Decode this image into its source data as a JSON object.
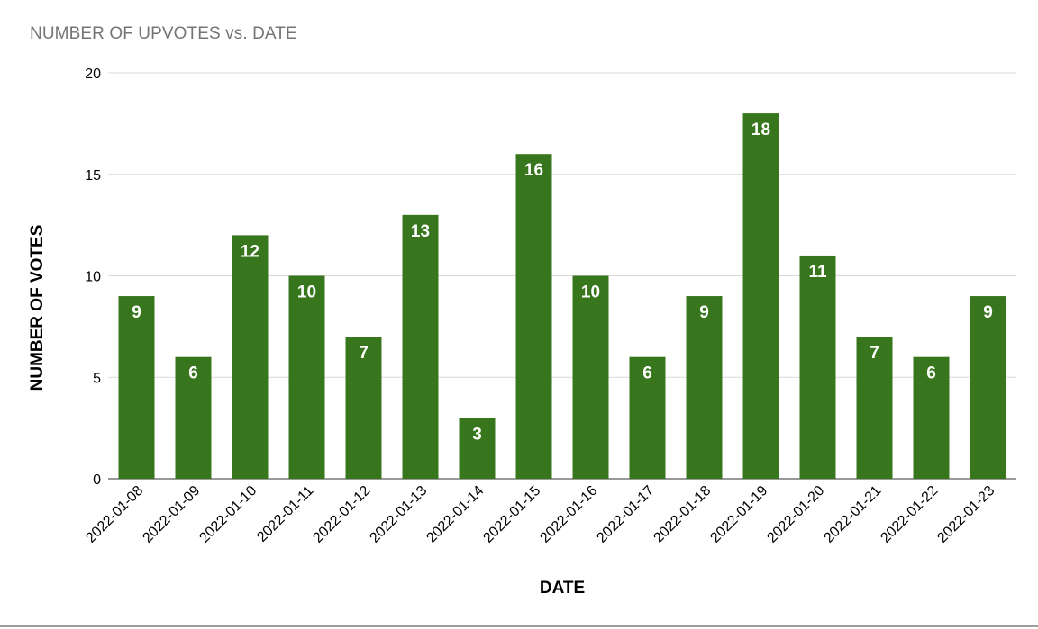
{
  "chart_data": {
    "type": "bar",
    "title": "NUMBER OF UPVOTES vs. DATE",
    "xlabel": "DATE",
    "ylabel": "NUMBER OF VOTES",
    "ylim": [
      0,
      20
    ],
    "yticks": [
      0,
      5,
      10,
      15,
      20
    ],
    "grid": true,
    "legend": "none",
    "bar_color": "#38761d",
    "data_label_color": "#ffffff",
    "categories": [
      "2022-01-08",
      "2022-01-09",
      "2022-01-10",
      "2022-01-11",
      "2022-01-12",
      "2022-01-13",
      "2022-01-14",
      "2022-01-15",
      "2022-01-16",
      "2022-01-17",
      "2022-01-18",
      "2022-01-19",
      "2022-01-20",
      "2022-01-21",
      "2022-01-22",
      "2022-01-23"
    ],
    "values": [
      9,
      6,
      12,
      10,
      7,
      13,
      3,
      16,
      10,
      6,
      9,
      18,
      11,
      7,
      6,
      9
    ]
  }
}
